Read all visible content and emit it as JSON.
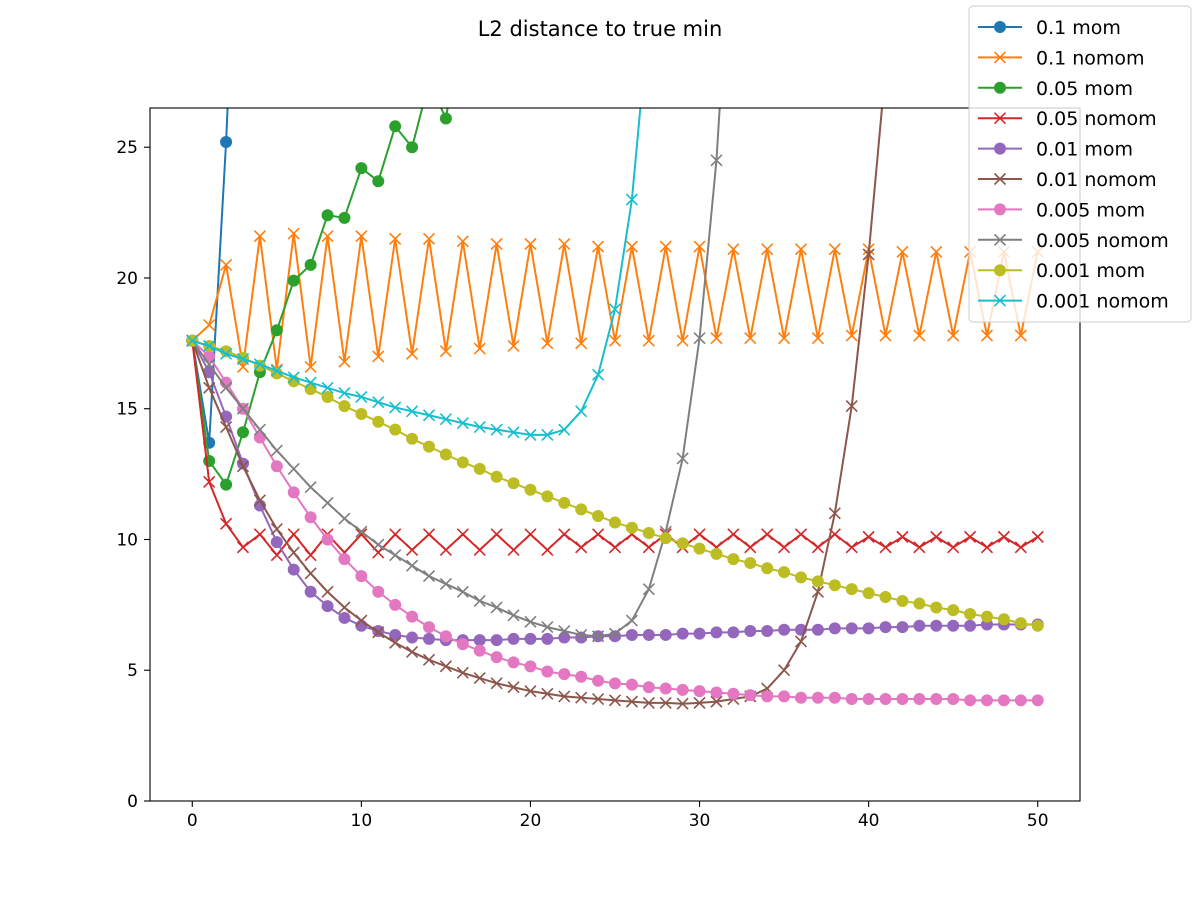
{
  "chart_data": {
    "type": "line",
    "title": "L2 distance to true min",
    "xlabel": "",
    "ylabel": "",
    "xlim": [
      -2.5,
      52.5
    ],
    "ylim": [
      0,
      26.5
    ],
    "xticks": [
      0,
      10,
      20,
      30,
      40,
      50
    ],
    "yticks": [
      0,
      5,
      10,
      15,
      20,
      25
    ],
    "grid": false,
    "legend_position": "top-right",
    "series": [
      {
        "name": "0.1 mom",
        "color": "#1f77b4",
        "marker": "circle",
        "x": [
          0,
          1,
          2,
          3
        ],
        "y": [
          17.6,
          13.7,
          25.2,
          40
        ]
      },
      {
        "name": "0.1 nomom",
        "color": "#ff7f0e",
        "marker": "x",
        "x": [
          0,
          1,
          2,
          3,
          4,
          5,
          6,
          7,
          8,
          9,
          10,
          11,
          12,
          13,
          14,
          15,
          16,
          17,
          18,
          19,
          20,
          21,
          22,
          23,
          24,
          25,
          26,
          27,
          28,
          29,
          30,
          31,
          32,
          33,
          34,
          35,
          36,
          37,
          38,
          39,
          40,
          41,
          42,
          43,
          44,
          45,
          46,
          47,
          48,
          49,
          50
        ],
        "y": [
          17.6,
          18.2,
          20.5,
          16.6,
          21.6,
          16.5,
          21.7,
          16.6,
          21.6,
          16.8,
          21.6,
          17.0,
          21.5,
          17.1,
          21.5,
          17.2,
          21.4,
          17.3,
          21.3,
          17.4,
          21.3,
          17.5,
          21.3,
          17.5,
          21.2,
          17.6,
          21.2,
          17.6,
          21.2,
          17.6,
          21.2,
          17.7,
          21.1,
          17.7,
          21.1,
          17.7,
          21.1,
          17.7,
          21.1,
          17.8,
          21.1,
          17.8,
          21.0,
          17.8,
          21.0,
          17.8,
          21.0,
          17.8,
          21.0,
          17.8,
          21.0
        ]
      },
      {
        "name": "0.05 mom",
        "color": "#2ca02c",
        "marker": "circle",
        "x": [
          0,
          1,
          2,
          3,
          4,
          5,
          6,
          7,
          8,
          9,
          10,
          11,
          12,
          13,
          14,
          15,
          16
        ],
        "y": [
          17.6,
          13.0,
          12.1,
          14.1,
          16.4,
          18.0,
          19.9,
          20.5,
          22.4,
          22.3,
          24.2,
          23.7,
          25.8,
          25.0,
          27.5,
          26.1,
          30
        ]
      },
      {
        "name": "0.05 nomom",
        "color": "#d62728",
        "marker": "x",
        "x": [
          0,
          1,
          2,
          3,
          4,
          5,
          6,
          7,
          8,
          9,
          10,
          11,
          12,
          13,
          14,
          15,
          16,
          17,
          18,
          19,
          20,
          21,
          22,
          23,
          24,
          25,
          26,
          27,
          28,
          29,
          30,
          31,
          32,
          33,
          34,
          35,
          36,
          37,
          38,
          39,
          40,
          41,
          42,
          43,
          44,
          45,
          46,
          47,
          48,
          49,
          50
        ],
        "y": [
          17.6,
          12.2,
          10.6,
          9.7,
          10.2,
          9.4,
          10.2,
          9.4,
          10.2,
          9.5,
          10.2,
          9.5,
          10.2,
          9.6,
          10.2,
          9.6,
          10.2,
          9.6,
          10.2,
          9.6,
          10.2,
          9.6,
          10.2,
          9.7,
          10.2,
          9.7,
          10.2,
          9.7,
          10.2,
          9.7,
          10.2,
          9.7,
          10.2,
          9.7,
          10.2,
          9.7,
          10.2,
          9.7,
          10.2,
          9.7,
          10.1,
          9.7,
          10.1,
          9.7,
          10.1,
          9.7,
          10.1,
          9.7,
          10.1,
          9.7,
          10.1
        ]
      },
      {
        "name": "0.01 mom",
        "color": "#9467bd",
        "marker": "circle",
        "x": [
          0,
          1,
          2,
          3,
          4,
          5,
          6,
          7,
          8,
          9,
          10,
          11,
          12,
          13,
          14,
          15,
          16,
          17,
          18,
          19,
          20,
          21,
          22,
          23,
          24,
          25,
          26,
          27,
          28,
          29,
          30,
          31,
          32,
          33,
          34,
          35,
          36,
          37,
          38,
          39,
          40,
          41,
          42,
          43,
          44,
          45,
          46,
          47,
          48,
          49,
          50
        ],
        "y": [
          17.6,
          16.4,
          14.7,
          12.9,
          11.3,
          9.9,
          8.85,
          8.0,
          7.45,
          7.0,
          6.7,
          6.5,
          6.35,
          6.25,
          6.2,
          6.15,
          6.15,
          6.15,
          6.15,
          6.2,
          6.2,
          6.2,
          6.25,
          6.25,
          6.3,
          6.3,
          6.35,
          6.35,
          6.35,
          6.4,
          6.4,
          6.45,
          6.45,
          6.5,
          6.5,
          6.55,
          6.55,
          6.55,
          6.6,
          6.6,
          6.6,
          6.65,
          6.65,
          6.7,
          6.7,
          6.7,
          6.7,
          6.75,
          6.75,
          6.75,
          6.75
        ]
      },
      {
        "name": "0.01 nomom",
        "color": "#8c564b",
        "marker": "x",
        "x": [
          0,
          1,
          2,
          3,
          4,
          5,
          6,
          7,
          8,
          9,
          10,
          11,
          12,
          13,
          14,
          15,
          16,
          17,
          18,
          19,
          20,
          21,
          22,
          23,
          24,
          25,
          26,
          27,
          28,
          29,
          30,
          31,
          32,
          33,
          34,
          35,
          36,
          37,
          38,
          39,
          40,
          41
        ],
        "y": [
          17.6,
          15.8,
          14.3,
          12.8,
          11.5,
          10.4,
          9.5,
          8.7,
          8.0,
          7.4,
          6.9,
          6.45,
          6.05,
          5.7,
          5.4,
          5.15,
          4.9,
          4.7,
          4.5,
          4.35,
          4.2,
          4.1,
          4.0,
          3.95,
          3.9,
          3.85,
          3.8,
          3.75,
          3.75,
          3.72,
          3.75,
          3.8,
          3.9,
          4.0,
          4.3,
          5.0,
          6.1,
          8.0,
          11.0,
          15.1,
          20.9,
          28.0
        ]
      },
      {
        "name": "0.005 mom",
        "color": "#e377c2",
        "marker": "circle",
        "x": [
          0,
          1,
          2,
          3,
          4,
          5,
          6,
          7,
          8,
          9,
          10,
          11,
          12,
          13,
          14,
          15,
          16,
          17,
          18,
          19,
          20,
          21,
          22,
          23,
          24,
          25,
          26,
          27,
          28,
          29,
          30,
          31,
          32,
          33,
          34,
          35,
          36,
          37,
          38,
          39,
          40,
          41,
          42,
          43,
          44,
          45,
          46,
          47,
          48,
          49,
          50
        ],
        "y": [
          17.6,
          17.0,
          16.0,
          15.0,
          13.9,
          12.8,
          11.8,
          10.85,
          10.0,
          9.25,
          8.6,
          8.0,
          7.5,
          7.05,
          6.65,
          6.3,
          6.0,
          5.75,
          5.5,
          5.3,
          5.15,
          4.95,
          4.85,
          4.75,
          4.6,
          4.5,
          4.45,
          4.35,
          4.3,
          4.25,
          4.2,
          4.15,
          4.1,
          4.05,
          4.0,
          4.0,
          3.95,
          3.95,
          3.95,
          3.9,
          3.9,
          3.9,
          3.9,
          3.9,
          3.9,
          3.9,
          3.85,
          3.85,
          3.85,
          3.85,
          3.85
        ]
      },
      {
        "name": "0.005 nomom",
        "color": "#7f7f7f",
        "marker": "x",
        "x": [
          0,
          1,
          2,
          3,
          4,
          5,
          6,
          7,
          8,
          9,
          10,
          11,
          12,
          13,
          14,
          15,
          16,
          17,
          18,
          19,
          20,
          21,
          22,
          23,
          24,
          25,
          26,
          27,
          28,
          29,
          30,
          31,
          32
        ],
        "y": [
          17.6,
          16.7,
          15.8,
          15.0,
          14.2,
          13.4,
          12.7,
          12.0,
          11.4,
          10.8,
          10.3,
          9.8,
          9.4,
          9.0,
          8.6,
          8.3,
          8.0,
          7.65,
          7.4,
          7.1,
          6.85,
          6.65,
          6.5,
          6.35,
          6.3,
          6.4,
          6.9,
          8.1,
          10.3,
          13.1,
          17.7,
          24.5,
          35
        ]
      },
      {
        "name": "0.001 mom",
        "color": "#bcbd22",
        "marker": "circle",
        "x": [
          0,
          1,
          2,
          3,
          4,
          5,
          6,
          7,
          8,
          9,
          10,
          11,
          12,
          13,
          14,
          15,
          16,
          17,
          18,
          19,
          20,
          21,
          22,
          23,
          24,
          25,
          26,
          27,
          28,
          29,
          30,
          31,
          32,
          33,
          34,
          35,
          36,
          37,
          38,
          39,
          40,
          41,
          42,
          43,
          44,
          45,
          46,
          47,
          48,
          49,
          50
        ],
        "y": [
          17.6,
          17.4,
          17.2,
          16.95,
          16.65,
          16.35,
          16.05,
          15.75,
          15.45,
          15.1,
          14.8,
          14.5,
          14.2,
          13.85,
          13.55,
          13.25,
          12.95,
          12.7,
          12.4,
          12.15,
          11.9,
          11.65,
          11.4,
          11.15,
          10.9,
          10.65,
          10.45,
          10.25,
          10.05,
          9.85,
          9.65,
          9.45,
          9.25,
          9.1,
          8.9,
          8.75,
          8.55,
          8.4,
          8.25,
          8.1,
          7.95,
          7.8,
          7.65,
          7.55,
          7.4,
          7.3,
          7.15,
          7.05,
          6.95,
          6.8,
          6.7
        ]
      },
      {
        "name": "0.001 nomom",
        "color": "#17becf",
        "marker": "x",
        "x": [
          0,
          1,
          2,
          3,
          4,
          5,
          6,
          7,
          8,
          9,
          10,
          11,
          12,
          13,
          14,
          15,
          16,
          17,
          18,
          19,
          20,
          21,
          22,
          23,
          24,
          25,
          26,
          27
        ],
        "y": [
          17.6,
          17.4,
          17.1,
          16.9,
          16.7,
          16.45,
          16.2,
          16.0,
          15.8,
          15.6,
          15.45,
          15.25,
          15.05,
          14.9,
          14.75,
          14.6,
          14.45,
          14.3,
          14.2,
          14.1,
          14.0,
          14.0,
          14.2,
          14.9,
          16.3,
          18.8,
          23.0,
          30
        ]
      }
    ]
  }
}
